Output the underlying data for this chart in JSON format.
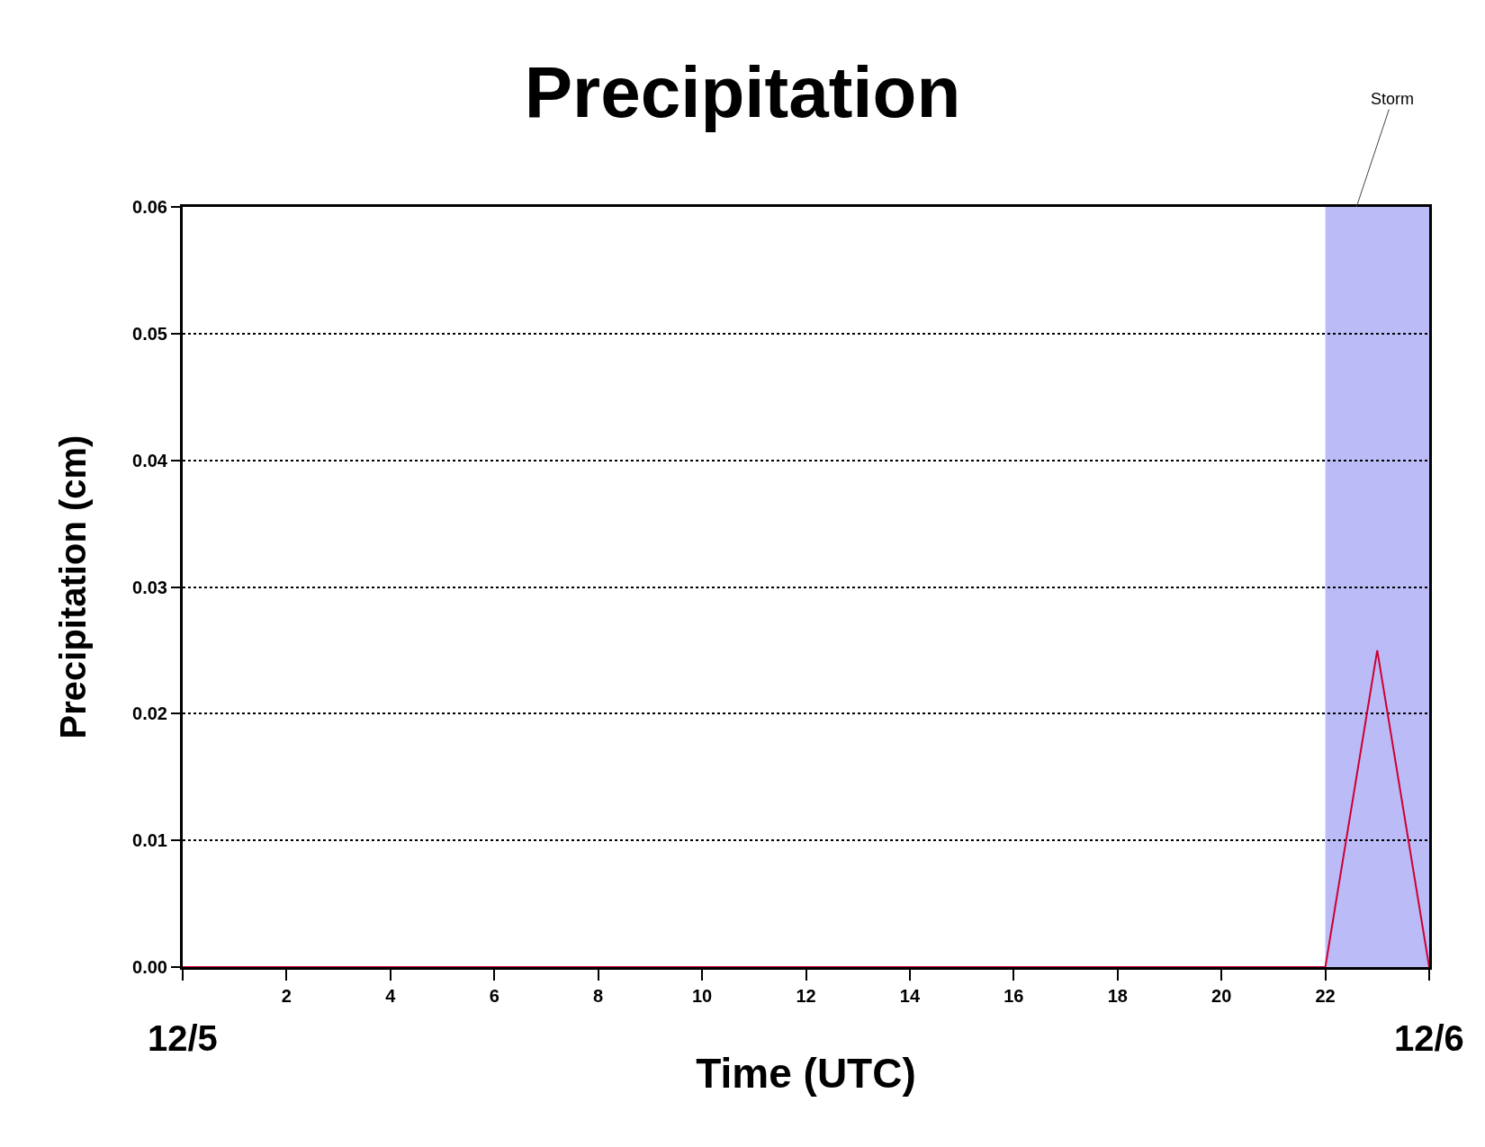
{
  "chart_data": {
    "type": "line",
    "title": "Precipitation",
    "xlabel": "Time (UTC)",
    "ylabel": "Precipitation (cm)",
    "x": [
      0,
      22,
      23,
      24
    ],
    "series": [
      {
        "color": "#cc0033",
        "values": [
          0,
          0,
          0.025,
          0
        ]
      }
    ],
    "xlim": [
      0,
      24
    ],
    "xticks": [
      {
        "value": 0,
        "label": null
      },
      2,
      4,
      6,
      8,
      10,
      12,
      14,
      16,
      18,
      20,
      22,
      {
        "value": 24,
        "label": null
      }
    ],
    "ylim": [
      0,
      0.06
    ],
    "yticks": [
      {
        "value": 0,
        "label": "0.00"
      },
      {
        "value": 0.01,
        "label": "0.01"
      },
      {
        "value": 0.02,
        "label": "0.02"
      },
      {
        "value": 0.03,
        "label": "0.03"
      },
      {
        "value": 0.04,
        "label": "0.04"
      },
      {
        "value": 0.05,
        "label": "0.05"
      },
      {
        "value": 0.06,
        "label": "0.06"
      }
    ],
    "bands": [
      {
        "axis": "x",
        "from": 22,
        "to": 24,
        "color": "#bbbbf7"
      }
    ],
    "annotations": [
      {
        "text": "Storm",
        "x": 22.6,
        "y": 0.06
      },
      "12/5",
      "12/6"
    ],
    "grid": "y",
    "marker": "none",
    "line_style": "solid"
  }
}
